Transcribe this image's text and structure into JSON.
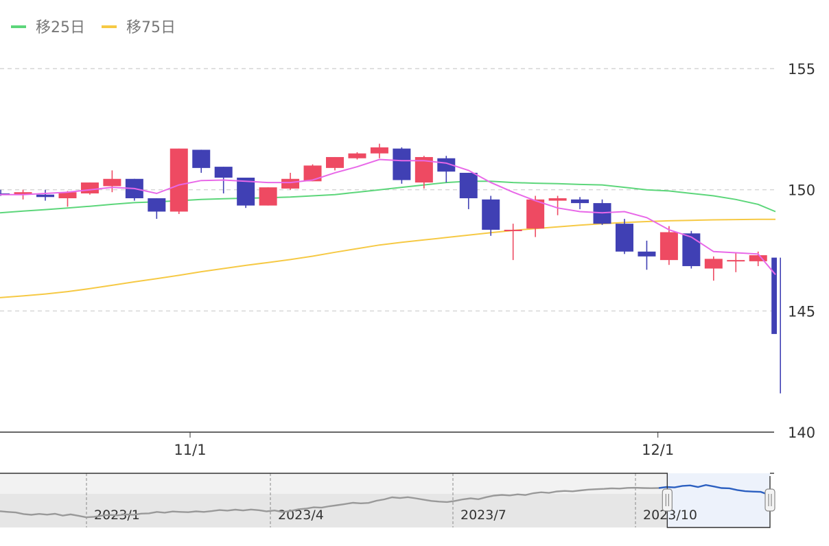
{
  "chart_data": {
    "type": "candlestick",
    "legend": [
      {
        "name": "移25日",
        "color": "#5cd67a"
      },
      {
        "name": "移75日",
        "color": "#f6c944"
      }
    ],
    "colors": {
      "up": "#ee4a62",
      "down": "#4040b4",
      "ma5": "#e868e8",
      "ma25": "#5cd67a",
      "ma75": "#f6c944",
      "navigator_line": "#999999",
      "navigator_selected_line": "#2b5fc0",
      "navigator_selected_fill": "#edf2fb",
      "navigator_fill": "#e6e6e6"
    },
    "ylim": [
      140,
      155
    ],
    "y_ticks": [
      "155",
      "150",
      "145",
      "140"
    ],
    "y_tick_values": [
      155,
      150,
      145,
      140
    ],
    "x_labels": [
      {
        "label": "11/1",
        "index": 8.5
      },
      {
        "label": "12/1",
        "index": 29.5
      }
    ],
    "candles": [
      {
        "o": 149.85,
        "h": 150.0,
        "l": 149.75,
        "c": 149.82
      },
      {
        "o": 149.8,
        "h": 150.0,
        "l": 149.6,
        "c": 149.9
      },
      {
        "o": 149.8,
        "h": 150.0,
        "l": 149.55,
        "c": 149.7
      },
      {
        "o": 149.65,
        "h": 149.95,
        "l": 149.3,
        "c": 149.9
      },
      {
        "o": 149.85,
        "h": 150.3,
        "l": 149.8,
        "c": 150.3
      },
      {
        "o": 150.15,
        "h": 150.8,
        "l": 149.9,
        "c": 150.45
      },
      {
        "o": 150.45,
        "h": 150.45,
        "l": 149.55,
        "c": 149.65
      },
      {
        "o": 149.65,
        "h": 149.65,
        "l": 148.8,
        "c": 149.1
      },
      {
        "o": 149.1,
        "h": 151.7,
        "l": 149.0,
        "c": 151.7
      },
      {
        "o": 151.65,
        "h": 151.65,
        "l": 150.7,
        "c": 150.9
      },
      {
        "o": 150.95,
        "h": 150.95,
        "l": 149.85,
        "c": 150.5
      },
      {
        "o": 150.5,
        "h": 150.5,
        "l": 149.25,
        "c": 149.35
      },
      {
        "o": 149.35,
        "h": 150.1,
        "l": 149.35,
        "c": 150.1
      },
      {
        "o": 150.05,
        "h": 150.7,
        "l": 150.0,
        "c": 150.45
      },
      {
        "o": 150.35,
        "h": 151.05,
        "l": 150.35,
        "c": 151.0
      },
      {
        "o": 150.9,
        "h": 151.35,
        "l": 150.8,
        "c": 151.35
      },
      {
        "o": 151.3,
        "h": 151.55,
        "l": 151.25,
        "c": 151.5
      },
      {
        "o": 151.5,
        "h": 151.9,
        "l": 151.3,
        "c": 151.75
      },
      {
        "o": 151.7,
        "h": 151.75,
        "l": 150.25,
        "c": 150.4
      },
      {
        "o": 150.3,
        "h": 151.4,
        "l": 150.05,
        "c": 151.35
      },
      {
        "o": 151.3,
        "h": 151.4,
        "l": 150.3,
        "c": 150.75
      },
      {
        "o": 150.7,
        "h": 150.7,
        "l": 149.2,
        "c": 149.65
      },
      {
        "o": 149.6,
        "h": 149.75,
        "l": 148.1,
        "c": 148.35
      },
      {
        "o": 148.3,
        "h": 148.6,
        "l": 147.1,
        "c": 148.35
      },
      {
        "o": 148.4,
        "h": 149.75,
        "l": 148.05,
        "c": 149.6
      },
      {
        "o": 149.55,
        "h": 149.75,
        "l": 148.95,
        "c": 149.65
      },
      {
        "o": 149.6,
        "h": 149.7,
        "l": 149.2,
        "c": 149.45
      },
      {
        "o": 149.45,
        "h": 149.6,
        "l": 148.55,
        "c": 148.6
      },
      {
        "o": 148.6,
        "h": 148.8,
        "l": 147.35,
        "c": 147.45
      },
      {
        "o": 147.45,
        "h": 147.9,
        "l": 146.7,
        "c": 147.25
      },
      {
        "o": 147.1,
        "h": 148.5,
        "l": 146.9,
        "c": 148.25
      },
      {
        "o": 148.2,
        "h": 148.3,
        "l": 146.75,
        "c": 146.85
      },
      {
        "o": 146.75,
        "h": 147.25,
        "l": 146.25,
        "c": 147.15
      },
      {
        "o": 147.1,
        "h": 147.4,
        "l": 146.6,
        "c": 147.1
      },
      {
        "o": 147.05,
        "h": 147.45,
        "l": 146.85,
        "c": 147.3
      },
      {
        "o": 147.2,
        "h": 147.2,
        "l": 141.6,
        "c": 144.05
      }
    ],
    "ma5": [
      149.8,
      149.8,
      149.85,
      149.9,
      150.0,
      150.1,
      150.05,
      149.85,
      150.2,
      150.38,
      150.4,
      150.35,
      150.3,
      150.3,
      150.4,
      150.7,
      150.95,
      151.25,
      151.2,
      151.2,
      151.1,
      150.8,
      150.3,
      149.9,
      149.55,
      149.25,
      149.1,
      149.05,
      149.1,
      148.85,
      148.35,
      148.05,
      147.45,
      147.4,
      147.35,
      146.5
    ],
    "ma25": [
      149.05,
      149.12,
      149.18,
      149.25,
      149.32,
      149.4,
      149.47,
      149.5,
      149.55,
      149.6,
      149.63,
      149.65,
      149.67,
      149.7,
      149.75,
      149.8,
      149.9,
      150.0,
      150.1,
      150.2,
      150.3,
      150.35,
      150.35,
      150.3,
      150.27,
      150.25,
      150.22,
      150.2,
      150.1,
      150.0,
      149.95,
      149.85,
      149.75,
      149.6,
      149.4,
      149.1
    ],
    "ma75": [
      145.55,
      145.62,
      145.7,
      145.8,
      145.92,
      146.06,
      146.2,
      146.33,
      146.47,
      146.62,
      146.75,
      146.88,
      147.0,
      147.12,
      147.26,
      147.42,
      147.57,
      147.72,
      147.83,
      147.93,
      148.03,
      148.13,
      148.23,
      148.32,
      148.4,
      148.47,
      148.54,
      148.6,
      148.65,
      148.69,
      148.72,
      148.74,
      148.76,
      148.77,
      148.78,
      148.78
    ],
    "navigator": {
      "labels": [
        "2023/1",
        "2023/4",
        "2023/7",
        "2023/10"
      ],
      "series": [
        133.5,
        133.0,
        132.6,
        131.5,
        131.0,
        131.6,
        131.1,
        131.7,
        130.4,
        131.3,
        130.3,
        129.2,
        129.6,
        130.4,
        130.9,
        130.6,
        131.3,
        131.0,
        131.8,
        132.0,
        133.0,
        132.5,
        133.3,
        133.0,
        132.8,
        133.4,
        133.0,
        133.6,
        134.3,
        133.9,
        134.6,
        134.0,
        134.7,
        134.2,
        133.4,
        134.0,
        133.0,
        133.6,
        134.8,
        135.3,
        136.2,
        136.0,
        137.0,
        137.7,
        138.5,
        139.4,
        139.0,
        139.3,
        140.8,
        141.8,
        143.2,
        142.7,
        143.3,
        142.5,
        141.6,
        140.7,
        140.2,
        139.9,
        140.7,
        141.8,
        142.5,
        141.9,
        143.3,
        144.4,
        144.9,
        144.5,
        145.3,
        144.8,
        146.1,
        146.7,
        146.3,
        147.3,
        147.7,
        147.4,
        148.0,
        148.6,
        148.9,
        149.1,
        149.5,
        149.3,
        149.8,
        149.9,
        149.7,
        149.6,
        149.7,
        150.4,
        150.1,
        151.2,
        151.5,
        150.4,
        151.8,
        150.8,
        149.7,
        149.5,
        148.3,
        147.5,
        147.2,
        147.0,
        145.0
      ],
      "selected_start_fraction": 0.862
    }
  }
}
